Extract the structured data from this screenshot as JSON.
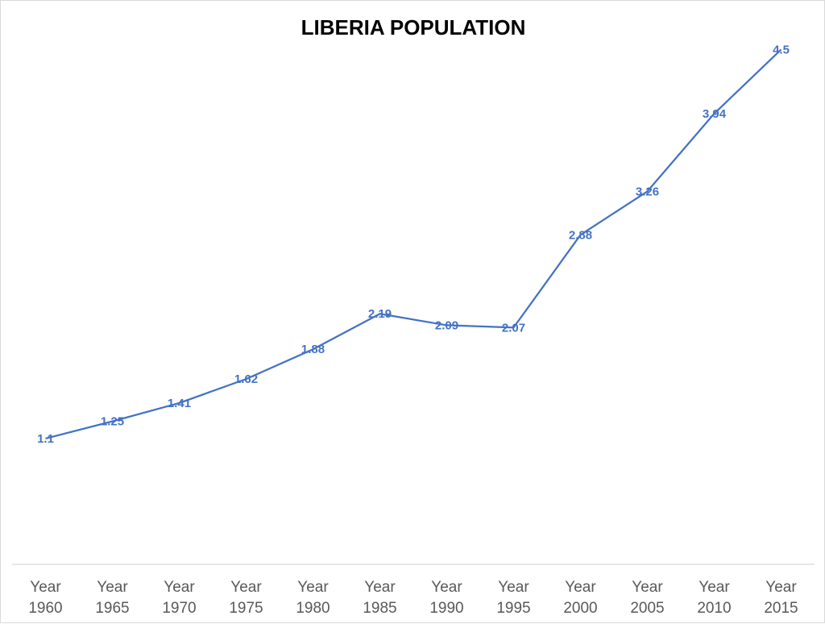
{
  "chart_data": {
    "type": "line",
    "title": "LIBERIA POPULATION",
    "xlabel": "",
    "ylabel": "",
    "categories": [
      [
        "Year",
        "1960"
      ],
      [
        "Year",
        "1965"
      ],
      [
        "Year",
        "1970"
      ],
      [
        "Year",
        "1975"
      ],
      [
        "Year",
        "1980"
      ],
      [
        "Year",
        "1985"
      ],
      [
        "Year",
        "1990"
      ],
      [
        "Year",
        "1995"
      ],
      [
        "Year",
        "2000"
      ],
      [
        "Year",
        "2005"
      ],
      [
        "Year",
        "2010"
      ],
      [
        "Year",
        "2015"
      ]
    ],
    "series": [
      {
        "values": [
          1.1,
          1.25,
          1.41,
          1.62,
          1.88,
          2.19,
          2.09,
          2.07,
          2.88,
          3.26,
          3.94,
          4.5
        ],
        "labels": [
          "1.1",
          "1.25",
          "1.41",
          "1.62",
          "1.88",
          "2.19",
          "2.09",
          "2.07",
          "2.88",
          "3.26",
          "3.94",
          "4.5"
        ]
      }
    ],
    "ylim": [
      0,
      5
    ],
    "grid": false,
    "legend": "none",
    "colors": {
      "line": "#4472C4",
      "axis": "#d9d9d9",
      "tick_text": "#595959",
      "title": "#000000"
    }
  }
}
